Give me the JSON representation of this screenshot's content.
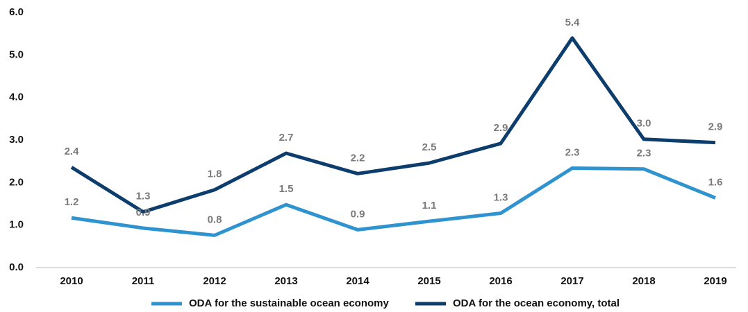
{
  "chart_data": {
    "type": "line",
    "categories": [
      "2010",
      "2011",
      "2012",
      "2013",
      "2014",
      "2015",
      "2016",
      "2017",
      "2018",
      "2019"
    ],
    "series": [
      {
        "name": "ODA for the sustainable ocean economy",
        "color": "#2f93cf",
        "values": [
          1.17,
          0.93,
          0.76,
          1.48,
          0.89,
          1.09,
          1.28,
          2.34,
          2.32,
          1.64
        ],
        "value_labels": [
          "1.2",
          "0.9",
          "0.8",
          "1.5",
          "0.9",
          "1.1",
          "1.3",
          "2.3",
          "2.3",
          "1.6"
        ]
      },
      {
        "name": "ODA for the ocean economy, total",
        "color": "#0c3d6c",
        "values": [
          2.36,
          1.31,
          1.83,
          2.69,
          2.21,
          2.46,
          2.92,
          5.4,
          3.02,
          2.94
        ],
        "value_labels": [
          "2.4",
          "1.3",
          "1.8",
          "2.7",
          "2.2",
          "2.5",
          "2.9",
          "5.4",
          "3.0",
          "2.9"
        ]
      }
    ],
    "ylim": [
      0,
      6
    ],
    "yticks": [
      {
        "value": 0,
        "label": "0.0"
      },
      {
        "value": 1,
        "label": "1.0"
      },
      {
        "value": 2,
        "label": "2.0"
      },
      {
        "value": 3,
        "label": "3.0"
      },
      {
        "value": 4,
        "label": "4.0"
      },
      {
        "value": 5,
        "label": "5.0"
      },
      {
        "value": 6,
        "label": "6.0"
      }
    ],
    "grid": false,
    "legend": "bottom"
  }
}
